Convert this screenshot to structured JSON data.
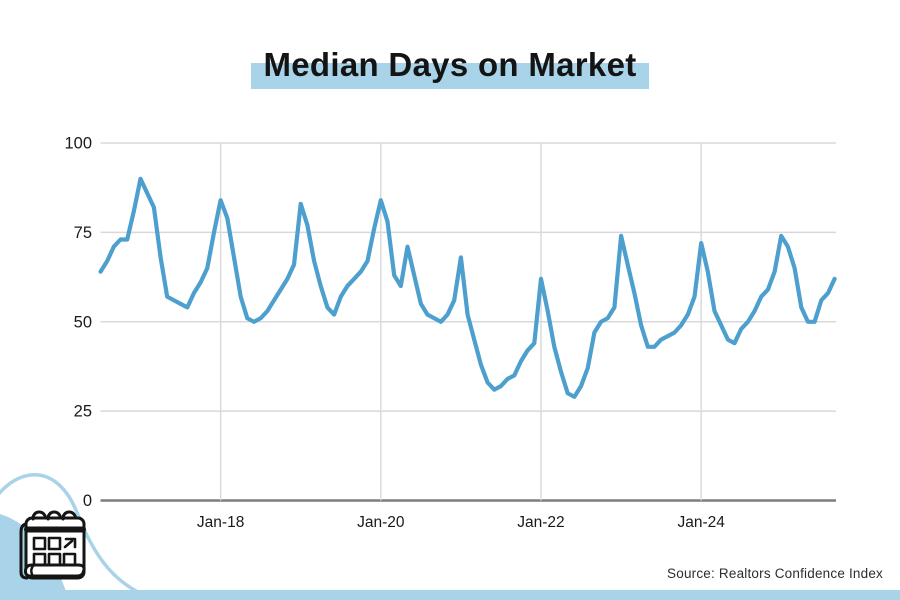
{
  "page": {
    "title": "Median Days on Market",
    "source_note": "Source: Realtors Confidence Index"
  },
  "chart_data": {
    "type": "line",
    "title": "Median Days on Market",
    "xlabel": "",
    "ylabel": "",
    "source": "Source: Realtors Confidence Index",
    "frequency": "monthly",
    "x_start_month": "Jul-2016",
    "x_end_month": "Sep-2025",
    "ylim": [
      0,
      100
    ],
    "grid": true,
    "legend": "none",
    "line_color": "#4D9FCE",
    "accent_light_blue": "#A9D3E9",
    "y_ticks": [
      {
        "value": 0,
        "label": "0"
      },
      {
        "value": 25,
        "label": "25"
      },
      {
        "value": 50,
        "label": "50"
      },
      {
        "value": 75,
        "label": "75"
      },
      {
        "value": 100,
        "label": "100"
      }
    ],
    "x_ticks": [
      {
        "month_index": 18,
        "label": "Jan-18"
      },
      {
        "month_index": 42,
        "label": "Jan-20"
      },
      {
        "month_index": 66,
        "label": "Jan-22"
      },
      {
        "month_index": 90,
        "label": "Jan-24"
      }
    ],
    "series": [
      {
        "name": "Median days on market (days)",
        "values": [
          64,
          67,
          71,
          73,
          73,
          81,
          90,
          86,
          82,
          68,
          57,
          56,
          55,
          54,
          58,
          61,
          65,
          75,
          84,
          79,
          68,
          57,
          51,
          50,
          51,
          53,
          56,
          59,
          62,
          66,
          83,
          77,
          67,
          60,
          54,
          52,
          57,
          60,
          62,
          64,
          67,
          76,
          84,
          78,
          63,
          60,
          71,
          63,
          55,
          52,
          51,
          50,
          52,
          56,
          68,
          52,
          45,
          38,
          33,
          31,
          32,
          34,
          35,
          39,
          42,
          44,
          62,
          53,
          43,
          36,
          30,
          29,
          32,
          37,
          47,
          50,
          51,
          54,
          74,
          66,
          58,
          49,
          43,
          43,
          45,
          46,
          47,
          49,
          52,
          57,
          72,
          64,
          53,
          49,
          45,
          44,
          48,
          50,
          53,
          57,
          59,
          64,
          74,
          71,
          65,
          54,
          50,
          50,
          56,
          58,
          62
        ]
      }
    ]
  }
}
